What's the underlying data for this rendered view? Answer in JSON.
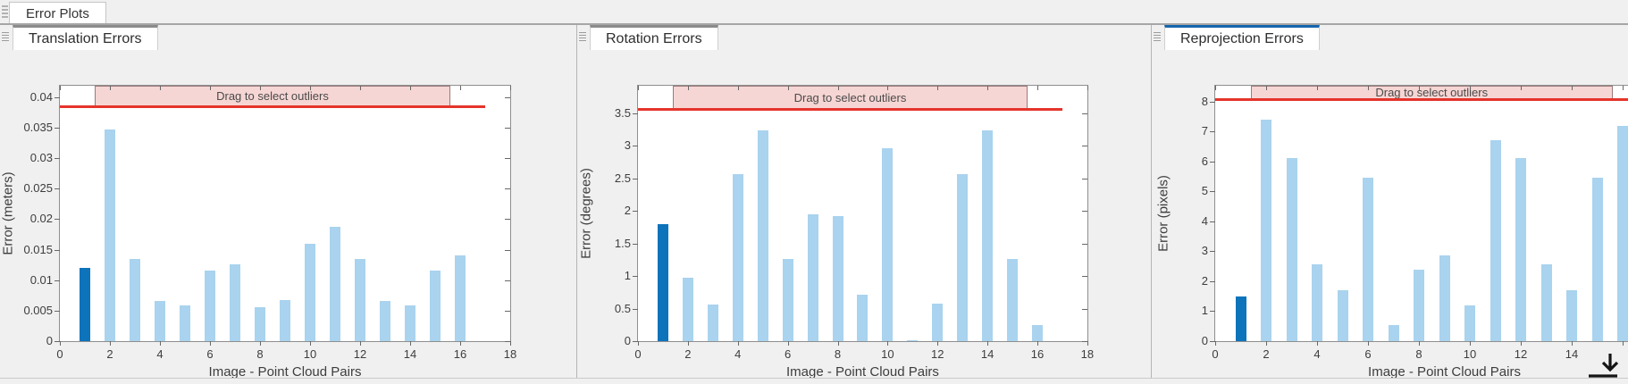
{
  "window": {
    "group_tab_label": "Error Plots"
  },
  "shared": {
    "outlier_banner": "Drag to select outliers",
    "colors": {
      "bar": "#a9d3ee",
      "bar_selected": "#0d73bb",
      "threshold_line": "#e5342b",
      "banner_fill": "#f6d6d4",
      "banner_border": "#9b7b7b",
      "active_tab_accent": "#1566ad"
    }
  },
  "chart_data": [
    {
      "type": "bar",
      "tab_label": "Translation Errors",
      "ylabel": "Error (meters)",
      "xlabel": "Image - Point Cloud Pairs",
      "categories": [
        1,
        2,
        3,
        4,
        5,
        6,
        7,
        8,
        9,
        10,
        11,
        12,
        13,
        14,
        15,
        16
      ],
      "values": [
        0.012,
        0.0347,
        0.0135,
        0.0066,
        0.0058,
        0.0116,
        0.0126,
        0.0056,
        0.0067,
        0.016,
        0.0188,
        0.0135,
        0.0066,
        0.0058,
        0.0116,
        0.014
      ],
      "selected_index": 0,
      "xlim": [
        0,
        18
      ],
      "y_axis_top": 0.0419,
      "threshold": 0.0385,
      "threshold_x_end": 17,
      "outlier_box_x": [
        1.4,
        15.6
      ],
      "y_ticks": [
        0,
        0.005,
        0.01,
        0.015,
        0.02,
        0.025,
        0.03,
        0.035,
        0.04
      ],
      "y_tick_labels": [
        "0",
        "0.005",
        "0.01",
        "0.015",
        "0.02",
        "0.025",
        "0.03",
        "0.035",
        "0.04"
      ],
      "x_ticks": [
        0,
        2,
        4,
        6,
        8,
        10,
        12,
        14,
        16,
        18
      ],
      "x_tick_labels": [
        "0",
        "2",
        "4",
        "6",
        "8",
        "10",
        "12",
        "14",
        "16",
        "18"
      ]
    },
    {
      "type": "bar",
      "tab_label": "Rotation Errors",
      "ylabel": "Error (degrees)",
      "xlabel": "Image - Point Cloud Pairs",
      "categories": [
        1,
        2,
        3,
        4,
        5,
        6,
        7,
        8,
        9,
        10,
        11,
        12,
        13,
        14,
        15,
        16
      ],
      "values": [
        1.8,
        0.98,
        0.56,
        2.57,
        3.24,
        1.26,
        1.95,
        1.92,
        0.71,
        2.96,
        0.02,
        0.57,
        2.57,
        3.24,
        1.26,
        0.25
      ],
      "selected_index": 0,
      "xlim": [
        0,
        18
      ],
      "y_axis_top": 3.92,
      "threshold": 3.56,
      "threshold_x_end": 17,
      "outlier_box_x": [
        1.4,
        15.6
      ],
      "y_ticks": [
        0,
        0.5,
        1,
        1.5,
        2,
        2.5,
        3,
        3.5
      ],
      "y_tick_labels": [
        "0",
        "0.5",
        "1",
        "1.5",
        "2",
        "2.5",
        "3",
        "3.5"
      ],
      "x_ticks": [
        0,
        2,
        4,
        6,
        8,
        10,
        12,
        14,
        16,
        18
      ],
      "x_tick_labels": [
        "0",
        "2",
        "4",
        "6",
        "8",
        "10",
        "12",
        "14",
        "16",
        "18"
      ]
    },
    {
      "type": "bar",
      "tab_label": "Reprojection Errors",
      "ylabel": "Error (pixels)",
      "xlabel": "Image - Point Cloud Pairs",
      "categories": [
        1,
        2,
        3,
        4,
        5,
        6,
        7,
        8,
        9,
        10,
        11,
        12,
        13,
        14,
        15,
        16
      ],
      "values": [
        1.5,
        7.4,
        6.1,
        2.58,
        1.7,
        5.45,
        0.55,
        2.38,
        2.87,
        1.2,
        6.7,
        6.1,
        2.58,
        1.7,
        5.45,
        7.2
      ],
      "selected_index": 0,
      "xlim": [
        0,
        18
      ],
      "y_axis_top": 8.53,
      "threshold": 8.08,
      "threshold_x_end": 17,
      "outlier_box_x": [
        1.4,
        15.6
      ],
      "y_ticks": [
        0,
        1,
        2,
        3,
        4,
        5,
        6,
        7,
        8
      ],
      "y_tick_labels": [
        "0",
        "1",
        "2",
        "3",
        "4",
        "5",
        "6",
        "7",
        "8"
      ],
      "x_ticks": [
        0,
        2,
        4,
        6,
        8,
        10,
        12,
        14,
        16,
        18
      ],
      "x_tick_labels": [
        "0",
        "2",
        "4",
        "6",
        "8",
        "10",
        "12",
        "14",
        "",
        ""
      ]
    }
  ]
}
